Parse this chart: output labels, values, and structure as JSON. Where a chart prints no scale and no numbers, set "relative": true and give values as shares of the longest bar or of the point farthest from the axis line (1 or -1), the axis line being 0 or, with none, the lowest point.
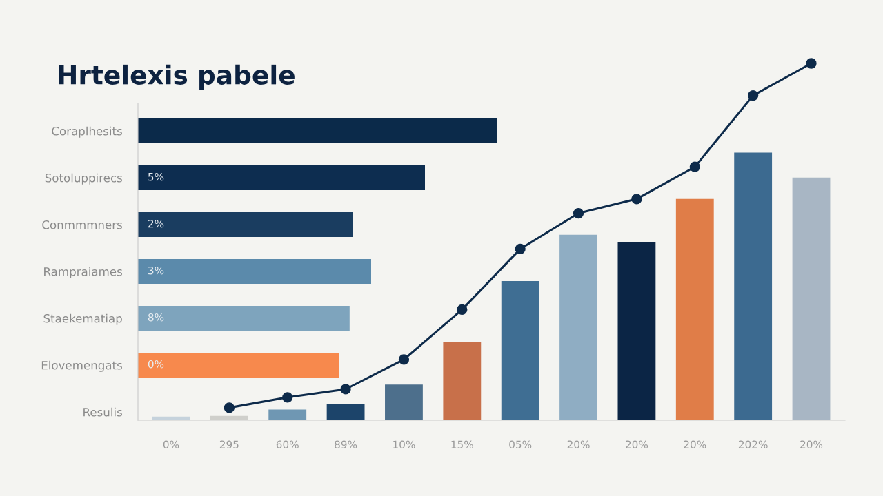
{
  "chart_data": [
    {
      "type": "bar",
      "orientation": "horizontal",
      "title": "Hrtelexis pabele",
      "categories": [
        "Coraplhesits",
        "Sotoluppirecs",
        "Conmmmners",
        "Rampraiames",
        "Staekematiap",
        "Elovemengats",
        "Resulis"
      ],
      "values": [
        1,
        0.8,
        0.6,
        0.65,
        0.59,
        0.56,
        null
      ],
      "colors": [
        "#0b2a4a",
        "#0d2d50",
        "#1a3d60",
        "#5b8aab",
        "#7ea4bd",
        "#f7894d",
        null
      ],
      "annotations": [
        "5%",
        "2%",
        "3%",
        "8%",
        "0%"
      ],
      "relative": true
    },
    {
      "type": "bar",
      "categories": [
        "0%",
        "295",
        "60%",
        "89%",
        "10%",
        "15%",
        "05%",
        "20%",
        "20%",
        "20%",
        "202%",
        "20%"
      ],
      "series": [
        {
          "type": "bar",
          "colors": [
            "#c5d2dc",
            "#cfcfcb",
            "#6f97b3",
            "#1c446a",
            "#4d6f8c",
            "#c8704a",
            "#3f6e93",
            "#8fadc3",
            "#0b2545",
            "#e07d48",
            "#3c6a90",
            "#a8b6c4"
          ],
          "values": [
            0.01,
            0.012,
            0.03,
            0.045,
            0.1,
            0.22,
            0.39,
            0.52,
            0.5,
            0.62,
            0.75,
            0.68
          ]
        },
        {
          "type": "line",
          "color": "#0d2a4a",
          "values": [
            null,
            0.035,
            0.064,
            0.087,
            0.17,
            0.31,
            0.48,
            0.58,
            0.62,
            0.71,
            0.91,
            1
          ]
        }
      ],
      "marker": "circle",
      "relative": true
    }
  ]
}
